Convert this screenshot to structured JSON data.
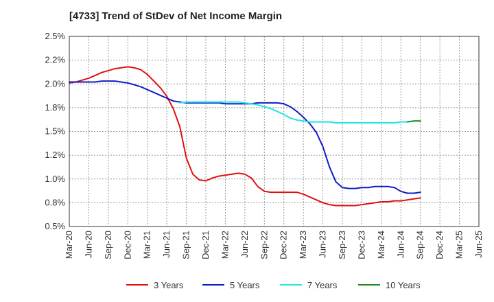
{
  "chart_data": {
    "type": "line",
    "title": "[4733]  Trend of StDev of Net Income Margin",
    "xlabel": "",
    "ylabel": "",
    "ylim": [
      0.5,
      2.5
    ],
    "y_ticks": [
      "0.5%",
      "0.8%",
      "1.0%",
      "1.2%",
      "1.5%",
      "1.8%",
      "2.0%",
      "2.2%",
      "2.5%"
    ],
    "x_ticks": [
      "Mar-20",
      "Jun-20",
      "Sep-20",
      "Dec-20",
      "Mar-21",
      "Jun-21",
      "Sep-21",
      "Dec-21",
      "Mar-22",
      "Jun-22",
      "Sep-22",
      "Dec-22",
      "Mar-23",
      "Jun-23",
      "Sep-23",
      "Dec-23",
      "Mar-24",
      "Jun-24",
      "Sep-24",
      "Dec-24",
      "Mar-25",
      "Jun-25"
    ],
    "grid": true,
    "legend_position": "bottom",
    "series": [
      {
        "name": "3 Years",
        "color": "#dd1111",
        "values": [
          2.01,
          2.02,
          2.04,
          2.06,
          2.09,
          2.12,
          2.14,
          2.16,
          2.17,
          2.18,
          2.17,
          2.15,
          2.1,
          2.03,
          1.96,
          1.87,
          1.74,
          1.55,
          1.22,
          1.05,
          0.99,
          0.98,
          1.01,
          1.03,
          1.04,
          1.05,
          1.06,
          1.05,
          1.01,
          0.92,
          0.87,
          0.86,
          0.86,
          0.86,
          0.86,
          0.86,
          0.84,
          0.81,
          0.78,
          0.75,
          0.73,
          0.72,
          0.72,
          0.72,
          0.72,
          0.73,
          0.74,
          0.75,
          0.76,
          0.76,
          0.77,
          0.77,
          0.78,
          0.79,
          0.8
        ]
      },
      {
        "name": "5 Years",
        "color": "#0d1bc4",
        "values": [
          2.02,
          2.02,
          2.02,
          2.02,
          2.02,
          2.03,
          2.03,
          2.03,
          2.02,
          2.01,
          1.99,
          1.97,
          1.94,
          1.91,
          1.88,
          1.85,
          1.82,
          1.81,
          1.8,
          1.8,
          1.8,
          1.8,
          1.8,
          1.8,
          1.79,
          1.79,
          1.79,
          1.79,
          1.79,
          1.8,
          1.8,
          1.8,
          1.8,
          1.79,
          1.76,
          1.71,
          1.65,
          1.58,
          1.49,
          1.34,
          1.13,
          0.97,
          0.91,
          0.9,
          0.9,
          0.91,
          0.91,
          0.92,
          0.92,
          0.92,
          0.91,
          0.87,
          0.85,
          0.85,
          0.86
        ]
      },
      {
        "name": "7 Years",
        "color": "#22e5e5",
        "start_index": 17,
        "values": [
          1.8,
          1.81,
          1.81,
          1.81,
          1.81,
          1.81,
          1.81,
          1.81,
          1.81,
          1.81,
          1.8,
          1.79,
          1.78,
          1.76,
          1.74,
          1.71,
          1.68,
          1.64,
          1.62,
          1.61,
          1.6,
          1.6,
          1.6,
          1.6,
          1.59,
          1.59,
          1.59,
          1.59,
          1.59,
          1.59,
          1.59,
          1.59,
          1.59,
          1.59,
          1.6,
          1.6,
          1.61,
          1.61
        ]
      },
      {
        "name": "10 Years",
        "color": "#1f8a1f",
        "start_index": 52,
        "values": [
          1.6,
          1.61,
          1.61
        ]
      }
    ]
  }
}
